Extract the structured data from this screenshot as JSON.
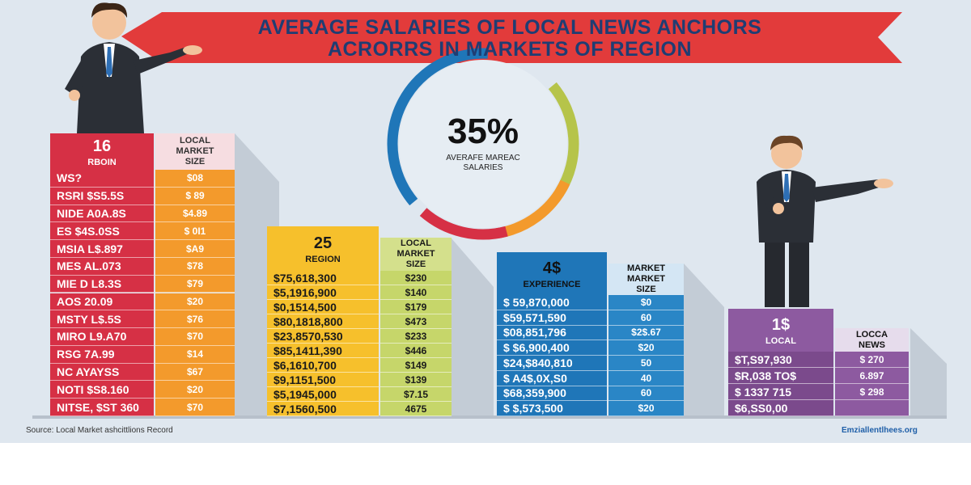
{
  "header": {
    "title_line1": "AVERAGE SALARIES OF LOCAL NEWS ANCHORS",
    "title_line2": "ACRORRS IN MARKETS OF REGION"
  },
  "highlight": {
    "value": "35%",
    "caption_line1": "AVERAFE MAREAC",
    "caption_line2": "SALARIES"
  },
  "blocks": [
    {
      "left_header": [
        "16",
        "RBOIN"
      ],
      "right_header": [
        "LOCAL",
        "MARKET",
        "SIZE"
      ],
      "rows": [
        [
          "WS?",
          "$08"
        ],
        [
          "RSRI $S5.5S",
          "$ 89"
        ],
        [
          "NIDE A0A.8S",
          "$4.89"
        ],
        [
          "ES $4S.0SS",
          "$ 0I1"
        ],
        [
          "MSIA L$.897",
          "$A9"
        ],
        [
          "MES AL.073",
          "$78"
        ],
        [
          "MIE D L8.3S",
          "$79"
        ],
        [
          "AOS 20.09",
          "$20"
        ],
        [
          "MSTY L$.5S",
          "$76"
        ],
        [
          "MIRO L9.A70",
          "$70"
        ],
        [
          "RSG 7A.99",
          "$14"
        ],
        [
          "NC AYAYSS",
          "$67"
        ],
        [
          "NOTI $S8.160",
          "$20"
        ],
        [
          "NITSE, $ST 360",
          "$70"
        ]
      ]
    },
    {
      "left_header": [
        "25",
        "REGION"
      ],
      "right_header": [
        "LOCAL",
        "MARKET",
        "SIZE"
      ],
      "rows": [
        [
          "$75,618,300",
          "$230"
        ],
        [
          "$5,1916,900",
          "$140"
        ],
        [
          "$0,1514,500",
          "$179"
        ],
        [
          "$80,1818,800",
          "$473"
        ],
        [
          "$23,8570,530",
          "$233"
        ],
        [
          "$85,1411,390",
          "$446"
        ],
        [
          "$6,1610,700",
          "$149"
        ],
        [
          "$9,1151,500",
          "$139"
        ],
        [
          "$5,1945,000",
          "$7.15"
        ],
        [
          "$7,1560,500",
          "4675"
        ]
      ]
    },
    {
      "left_header": [
        "4$",
        "EXPERIENCE"
      ],
      "right_header": [
        "MARKET",
        "MARKET",
        "SIZE"
      ],
      "rows": [
        [
          "$ 59,870,000",
          "$0"
        ],
        [
          "$59,571,590",
          "60"
        ],
        [
          "$08,851,796",
          "$2$.67"
        ],
        [
          "$ $6,900,400",
          "$20"
        ],
        [
          "$24,$840,810",
          "50"
        ],
        [
          "$ A4$,0X,S0",
          "40"
        ],
        [
          "$68,359,900",
          "60"
        ],
        [
          "$ $,573,500",
          "$20"
        ]
      ]
    },
    {
      "left_header": [
        "1$",
        "LOCAL"
      ],
      "right_header": [
        "LOCCA",
        "NEWS"
      ],
      "rows": [
        [
          "$T,S97,930",
          "$ 270"
        ],
        [
          "$R,038 TO$",
          "6.897"
        ],
        [
          "$ 1337 715",
          "$ 298"
        ],
        [
          "$6,SS0,00"
        ]
      ]
    }
  ],
  "footer": {
    "source": "Source: Local Market ashcittlions Record",
    "website": "Emziallentlhees.org"
  }
}
